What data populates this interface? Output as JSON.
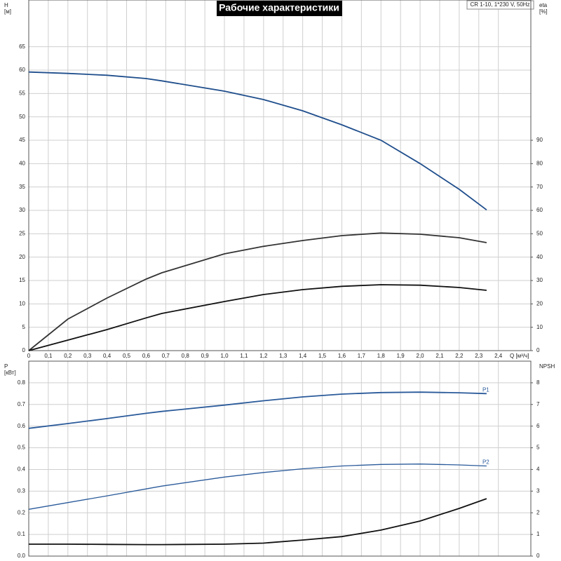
{
  "chart_data": [
    {
      "type": "line",
      "title": "Рабочие характеристики",
      "annotation": "CR 1-10, 1*230 V, 50Hz",
      "y_label": "H",
      "y_unit": "[м]",
      "y2_label": "eta",
      "y2_unit": "[%]",
      "x_label": "Q [м³/ч]",
      "x": [
        0,
        0.2,
        0.4,
        0.6,
        0.68,
        1.0,
        1.2,
        1.4,
        1.6,
        1.8,
        2.0,
        2.2,
        2.34
      ],
      "series": [
        {
          "color": "#1f4e8c",
          "values": [
            59.6,
            59.3,
            58.9,
            58.2,
            57.7,
            55.5,
            53.7,
            51.3,
            48.3,
            45,
            40,
            34.5,
            30.1
          ]
        },
        {
          "color": "#333333",
          "axis": "y2",
          "values": [
            0,
            13.5,
            22.5,
            30.6,
            33.3,
            41.4,
            44.6,
            47.1,
            49.2,
            50.3,
            49.8,
            48.3,
            46.2
          ]
        },
        {
          "color": "#111111",
          "axis": "y2",
          "values": [
            0,
            4.5,
            9,
            14,
            15.9,
            21,
            24,
            26.1,
            27.5,
            28.2,
            28,
            27,
            25.8
          ]
        }
      ],
      "xlim": [
        0,
        2.566
      ],
      "ylim": [
        0,
        75
      ],
      "y2lim": [
        0,
        150
      ],
      "xticks": [
        0,
        {
          "value": 0.1,
          "label": "0,1"
        },
        {
          "value": 0.2,
          "label": "0,2"
        },
        {
          "value": 0.3,
          "label": "0,3"
        },
        {
          "value": 0.4,
          "label": "0,4"
        },
        {
          "value": 0.5,
          "label": "0,5"
        },
        {
          "value": 0.6,
          "label": "0,6"
        },
        {
          "value": 0.7,
          "label": "0,7"
        },
        {
          "value": 0.8,
          "label": "0,8"
        },
        {
          "value": 0.9,
          "label": "0,9"
        },
        {
          "value": 1.0,
          "label": "1,0"
        },
        {
          "value": 1.1,
          "label": "1,1"
        },
        {
          "value": 1.2,
          "label": "1,2"
        },
        {
          "value": 1.3,
          "label": "1,3"
        },
        {
          "value": 1.4,
          "label": "1,4"
        },
        {
          "value": 1.5,
          "label": "1,5"
        },
        {
          "value": 1.6,
          "label": "1,6"
        },
        {
          "value": 1.7,
          "label": "1,7"
        },
        {
          "value": 1.8,
          "label": "1,8"
        },
        {
          "value": 1.9,
          "label": "1,9"
        },
        {
          "value": 2.0,
          "label": "2,0"
        },
        {
          "value": 2.1,
          "label": "2,1"
        },
        {
          "value": 2.2,
          "label": "2,2"
        },
        {
          "value": 2.3,
          "label": "2,3"
        },
        {
          "value": 2.4,
          "label": "2,4"
        }
      ],
      "yticks": [
        0,
        5,
        10,
        15,
        20,
        25,
        30,
        35,
        40,
        45,
        50,
        55,
        60,
        65
      ],
      "y2ticks": [
        0,
        10,
        20,
        30,
        40,
        50,
        60,
        70,
        80,
        90
      ],
      "grid": true
    },
    {
      "type": "line",
      "y_label": "P",
      "y_unit": "[кВт]",
      "y2_label": "NPSH",
      "x": [
        0,
        0.2,
        0.4,
        0.6,
        0.68,
        1.0,
        1.2,
        1.4,
        1.6,
        1.8,
        2.0,
        2.2,
        2.34
      ],
      "series": [
        {
          "name": "P1",
          "color": "#2a5a9a",
          "values": [
            0.59,
            0.612,
            0.635,
            0.659,
            0.668,
            0.697,
            0.717,
            0.735,
            0.748,
            0.755,
            0.757,
            0.754,
            0.75
          ]
        },
        {
          "name": "P2",
          "color": "#2a5a9a",
          "values": [
            0.216,
            0.247,
            0.278,
            0.31,
            0.323,
            0.365,
            0.386,
            0.403,
            0.416,
            0.423,
            0.425,
            0.421,
            0.416
          ]
        },
        {
          "color": "#111111",
          "axis": "y2",
          "values": [
            0.55,
            0.55,
            0.54,
            0.53,
            0.53,
            0.55,
            0.6,
            0.74,
            0.9,
            1.2,
            1.62,
            2.2,
            2.65
          ]
        }
      ],
      "xlim": [
        0,
        2.566
      ],
      "ylim": [
        0,
        0.9
      ],
      "y2lim": [
        0,
        9
      ],
      "yticks": [
        {
          "value": 0,
          "label": "0.0"
        },
        0.1,
        0.2,
        0.3,
        0.4,
        0.5,
        0.6,
        0.7,
        0.8
      ],
      "y2ticks": [
        0,
        1,
        2,
        3,
        4,
        5,
        6,
        7,
        8
      ],
      "grid": true
    }
  ]
}
